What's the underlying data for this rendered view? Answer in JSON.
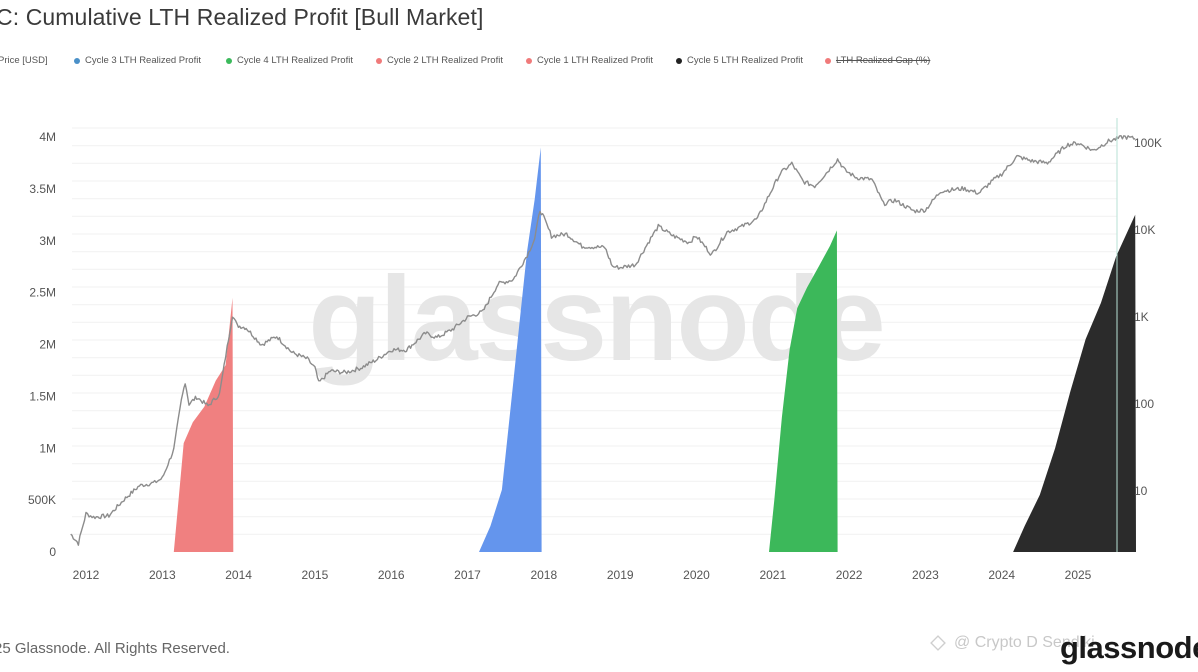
{
  "chart_data": {
    "type": "area",
    "title": "C: Cumulative LTH Realized Profit [Bull Market]",
    "watermark": "glassnode",
    "legend": [
      {
        "label": "Price [USD]",
        "color": "#4a90c8",
        "strikethrough": false
      },
      {
        "label": "Cycle 3 LTH Realized Profit",
        "color": "#4a90c8",
        "strikethrough": false
      },
      {
        "label": "Cycle 4 LTH Realized Profit",
        "color": "#3cba5c",
        "strikethrough": false
      },
      {
        "label": "Cycle 2 LTH Realized Profit",
        "color": "#f07a7a",
        "strikethrough": false
      },
      {
        "label": "Cycle 1 LTH Realized Profit",
        "color": "#f07a7a",
        "strikethrough": false
      },
      {
        "label": "Cycle 5 LTH Realized Profit",
        "color": "#222222",
        "strikethrough": false
      },
      {
        "label": "LTH Realized Cap (%)",
        "color": "#f07a7a",
        "strikethrough": true
      }
    ],
    "x_ticks": [
      "2012",
      "2013",
      "2014",
      "2015",
      "2016",
      "2017",
      "2018",
      "2019",
      "2020",
      "2021",
      "2022",
      "2023",
      "2024",
      "2025"
    ],
    "y_left": {
      "min": 0,
      "max": 4000000,
      "ticks": [
        {
          "value": 0,
          "label": "0"
        },
        {
          "value": 500000,
          "label": "500K"
        },
        {
          "value": 1000000,
          "label": "1M"
        },
        {
          "value": 1500000,
          "label": "1.5M"
        },
        {
          "value": 2000000,
          "label": "2M"
        },
        {
          "value": 2500000,
          "label": "2.5M"
        },
        {
          "value": 3000000,
          "label": "3M"
        },
        {
          "value": 3500000,
          "label": "3.5M"
        },
        {
          "value": 4000000,
          "label": "4M"
        }
      ]
    },
    "y_right": {
      "scale": "log",
      "ticks": [
        {
          "value": 10,
          "label": "10"
        },
        {
          "value": 100,
          "label": "100"
        },
        {
          "value": 1000,
          "label": "1K"
        },
        {
          "value": 10000,
          "label": "10K"
        },
        {
          "value": 100000,
          "label": "100K"
        }
      ]
    },
    "price_series": {
      "name": "Price [USD]",
      "color": "#8a8a8a",
      "points": [
        [
          2011.8,
          3.2
        ],
        [
          2011.9,
          2.5
        ],
        [
          2012.0,
          5.5
        ],
        [
          2012.1,
          5.0
        ],
        [
          2012.3,
          5.2
        ],
        [
          2012.5,
          8.0
        ],
        [
          2012.7,
          11.5
        ],
        [
          2012.9,
          12.5
        ],
        [
          2013.0,
          14
        ],
        [
          2013.15,
          30
        ],
        [
          2013.25,
          110
        ],
        [
          2013.3,
          180
        ],
        [
          2013.35,
          100
        ],
        [
          2013.45,
          120
        ],
        [
          2013.6,
          95
        ],
        [
          2013.75,
          130
        ],
        [
          2013.85,
          450
        ],
        [
          2013.92,
          1050
        ],
        [
          2013.98,
          800
        ],
        [
          2014.1,
          750
        ],
        [
          2014.3,
          480
        ],
        [
          2014.5,
          600
        ],
        [
          2014.7,
          390
        ],
        [
          2014.9,
          330
        ],
        [
          2015.0,
          260
        ],
        [
          2015.05,
          175
        ],
        [
          2015.2,
          240
        ],
        [
          2015.4,
          230
        ],
        [
          2015.6,
          260
        ],
        [
          2015.8,
          320
        ],
        [
          2016.0,
          420
        ],
        [
          2016.2,
          420
        ],
        [
          2016.45,
          650
        ],
        [
          2016.6,
          580
        ],
        [
          2016.8,
          720
        ],
        [
          2017.0,
          990
        ],
        [
          2017.2,
          1150
        ],
        [
          2017.4,
          2400
        ],
        [
          2017.6,
          2700
        ],
        [
          2017.8,
          5500
        ],
        [
          2017.88,
          8000
        ],
        [
          2017.95,
          17000
        ],
        [
          2018.0,
          13800
        ],
        [
          2018.1,
          8500
        ],
        [
          2018.3,
          9000
        ],
        [
          2018.5,
          6500
        ],
        [
          2018.8,
          6300
        ],
        [
          2018.9,
          3800
        ],
        [
          2019.0,
          3700
        ],
        [
          2019.2,
          4000
        ],
        [
          2019.4,
          8000
        ],
        [
          2019.5,
          11000
        ],
        [
          2019.7,
          8500
        ],
        [
          2019.9,
          7200
        ],
        [
          2020.0,
          8500
        ],
        [
          2020.2,
          5200
        ],
        [
          2020.4,
          9500
        ],
        [
          2020.6,
          11000
        ],
        [
          2020.8,
          13500
        ],
        [
          2020.95,
          25000
        ],
        [
          2021.1,
          45000
        ],
        [
          2021.25,
          58000
        ],
        [
          2021.4,
          36000
        ],
        [
          2021.55,
          32000
        ],
        [
          2021.7,
          45000
        ],
        [
          2021.85,
          65000
        ],
        [
          2021.95,
          48000
        ],
        [
          2022.1,
          40000
        ],
        [
          2022.3,
          38000
        ],
        [
          2022.45,
          20000
        ],
        [
          2022.6,
          22000
        ],
        [
          2022.85,
          16500
        ],
        [
          2023.0,
          17000
        ],
        [
          2023.2,
          28000
        ],
        [
          2023.5,
          30000
        ],
        [
          2023.7,
          26500
        ],
        [
          2023.9,
          38000
        ],
        [
          2024.0,
          44000
        ],
        [
          2024.2,
          70000
        ],
        [
          2024.4,
          62000
        ],
        [
          2024.6,
          59000
        ],
        [
          2024.85,
          95000
        ],
        [
          2025.0,
          100000
        ],
        [
          2025.2,
          82000
        ],
        [
          2025.4,
          105000
        ],
        [
          2025.6,
          118000
        ],
        [
          2025.75,
          112000
        ]
      ]
    },
    "profit_series": [
      {
        "name": "Cycle 2 LTH Realized Profit",
        "color": "#f08080",
        "points": [
          [
            2013.15,
            0
          ],
          [
            2013.2,
            400000
          ],
          [
            2013.28,
            1050000
          ],
          [
            2013.4,
            1250000
          ],
          [
            2013.55,
            1400000
          ],
          [
            2013.7,
            1650000
          ],
          [
            2013.83,
            1800000
          ],
          [
            2013.92,
            2450000
          ],
          [
            2013.93,
            0
          ]
        ]
      },
      {
        "name": "Cycle 3 LTH Realized Profit",
        "color": "#6495ed",
        "points": [
          [
            2017.15,
            0
          ],
          [
            2017.3,
            250000
          ],
          [
            2017.45,
            600000
          ],
          [
            2017.58,
            1500000
          ],
          [
            2017.68,
            2200000
          ],
          [
            2017.78,
            2900000
          ],
          [
            2017.88,
            3400000
          ],
          [
            2017.96,
            3900000
          ],
          [
            2017.97,
            0
          ]
        ]
      },
      {
        "name": "Cycle 4 LTH Realized Profit",
        "color": "#3cb85a",
        "points": [
          [
            2020.95,
            0
          ],
          [
            2021.02,
            500000
          ],
          [
            2021.12,
            1300000
          ],
          [
            2021.22,
            1950000
          ],
          [
            2021.32,
            2350000
          ],
          [
            2021.45,
            2550000
          ],
          [
            2021.6,
            2750000
          ],
          [
            2021.75,
            2950000
          ],
          [
            2021.84,
            3100000
          ],
          [
            2021.85,
            0
          ]
        ]
      },
      {
        "name": "Cycle 5 LTH Realized Profit",
        "color": "#2b2b2b",
        "points": [
          [
            2024.15,
            0
          ],
          [
            2024.3,
            250000
          ],
          [
            2024.5,
            550000
          ],
          [
            2024.7,
            1000000
          ],
          [
            2024.9,
            1550000
          ],
          [
            2025.1,
            2050000
          ],
          [
            2025.3,
            2400000
          ],
          [
            2025.5,
            2850000
          ],
          [
            2025.75,
            3250000
          ],
          [
            2025.76,
            0
          ]
        ]
      }
    ]
  },
  "footer": {
    "copyright": "25 Glassnode. All Rights Reserved.",
    "brand": "glassnode",
    "credit": "@ Crypto D Sendiki"
  }
}
